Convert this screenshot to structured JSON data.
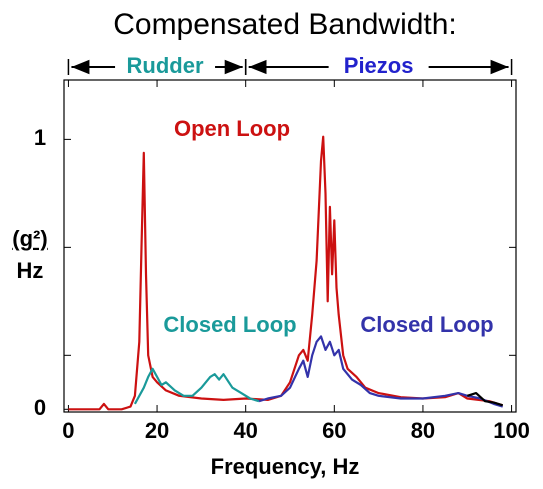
{
  "chart_data": {
    "type": "line",
    "title": "Compensated Bandwidth:",
    "xlabel": "Frequency, Hz",
    "ylabel_numerator": "(g²)",
    "ylabel_denominator": "Hz",
    "xlim": [
      -1,
      101
    ],
    "ylim": [
      -0.01,
      1.22
    ],
    "xticks": [
      0,
      20,
      40,
      60,
      80,
      100
    ],
    "yticks": [
      0,
      1
    ],
    "yminorticks": [
      0.2,
      0.6
    ],
    "ranges": [
      {
        "label": "Rudder",
        "start": 0,
        "end": 40,
        "color": "#1a9a9a"
      },
      {
        "label": "Piezos",
        "start": 40,
        "end": 100,
        "color": "#2222cc"
      }
    ],
    "series": [
      {
        "name": "Open Loop",
        "color": "#cc1111",
        "x": [
          0,
          4,
          7,
          8,
          9,
          12,
          14,
          15,
          16,
          16.5,
          17,
          17.5,
          18,
          19,
          20,
          22,
          25,
          30,
          35,
          40,
          45,
          48,
          50,
          52,
          53,
          54,
          55,
          56,
          57,
          57.5,
          58,
          58.5,
          59,
          59.5,
          60,
          60.5,
          61,
          62,
          63,
          65,
          67,
          70,
          75,
          80,
          85,
          88,
          90,
          95,
          98
        ],
        "values": [
          0,
          0,
          0,
          0.02,
          0,
          0,
          0.01,
          0.05,
          0.25,
          0.6,
          0.95,
          0.5,
          0.2,
          0.12,
          0.1,
          0.07,
          0.05,
          0.04,
          0.035,
          0.04,
          0.035,
          0.05,
          0.1,
          0.2,
          0.22,
          0.18,
          0.35,
          0.55,
          0.92,
          1.01,
          0.8,
          0.4,
          0.75,
          0.5,
          0.7,
          0.45,
          0.35,
          0.2,
          0.15,
          0.12,
          0.08,
          0.06,
          0.045,
          0.04,
          0.045,
          0.06,
          0.04,
          0.03,
          0.015
        ]
      },
      {
        "name": "Closed Loop",
        "color": "#1a9a9a",
        "x": [
          15,
          17,
          18,
          19,
          20,
          21,
          22,
          24,
          26,
          28,
          30,
          32,
          33,
          34,
          35,
          37,
          39,
          41,
          43
        ],
        "values": [
          0.02,
          0.08,
          0.12,
          0.15,
          0.12,
          0.09,
          0.1,
          0.07,
          0.05,
          0.05,
          0.08,
          0.12,
          0.13,
          0.11,
          0.13,
          0.08,
          0.06,
          0.04,
          0.03
        ]
      },
      {
        "name": "Closed Loop",
        "color": "#3333aa",
        "x": [
          43,
          45,
          48,
          50,
          52,
          53,
          54,
          55,
          56,
          57,
          58,
          59,
          60,
          61,
          62,
          64,
          66,
          68,
          70,
          75,
          80,
          85,
          88,
          90,
          93,
          96,
          98
        ],
        "values": [
          0.03,
          0.04,
          0.05,
          0.08,
          0.15,
          0.18,
          0.12,
          0.2,
          0.25,
          0.27,
          0.22,
          0.25,
          0.2,
          0.22,
          0.15,
          0.11,
          0.09,
          0.06,
          0.05,
          0.04,
          0.04,
          0.05,
          0.06,
          0.05,
          0.04,
          0.02,
          0.01
        ]
      },
      {
        "color": "#000000",
        "x": [
          90,
          92,
          94,
          96,
          98
        ],
        "values": [
          0.05,
          0.06,
          0.03,
          0.025,
          0.015
        ]
      }
    ]
  }
}
